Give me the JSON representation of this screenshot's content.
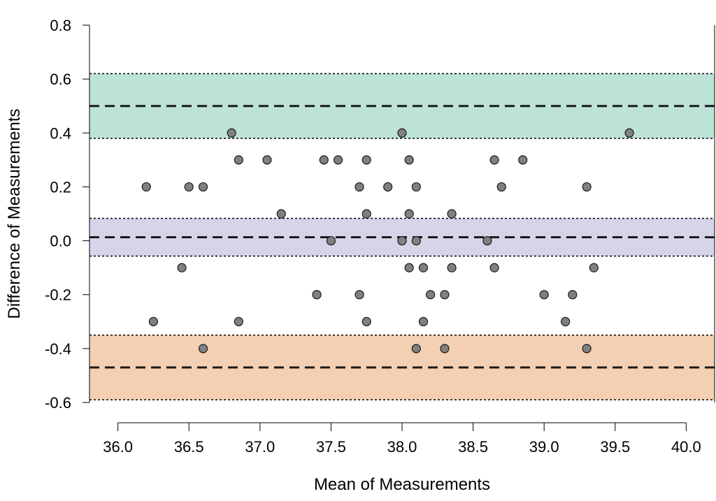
{
  "chart_data": {
    "type": "scatter",
    "title": "",
    "xlabel": "Mean of Measurements",
    "ylabel": "Difference of Measurements",
    "xlim": [
      35.8,
      40.2
    ],
    "ylim": [
      -0.6,
      0.8
    ],
    "xticks": [
      36.0,
      36.5,
      37.0,
      37.5,
      38.0,
      38.5,
      39.0,
      39.5,
      40.0
    ],
    "xtick_labels": [
      "36.0",
      "36.5",
      "37.0",
      "37.5",
      "38.0",
      "38.5",
      "39.0",
      "39.5",
      "40.0"
    ],
    "yticks": [
      -0.6,
      -0.4,
      -0.2,
      0.0,
      0.2,
      0.4,
      0.6,
      0.8
    ],
    "ytick_labels": [
      "-0.6",
      "-0.4",
      "-0.2",
      "0.0",
      "0.2",
      "0.4",
      "0.6",
      "0.8"
    ],
    "grid": false,
    "bands": [
      {
        "center": 0.5,
        "lower": 0.38,
        "upper": 0.62,
        "color": "#bce3d6"
      },
      {
        "center": 0.013,
        "lower": -0.057,
        "upper": 0.083,
        "color": "#d6d4e8"
      },
      {
        "center": -0.47,
        "lower": -0.59,
        "upper": -0.35,
        "color": "#f4cfb2"
      }
    ],
    "marker_color": "#808080",
    "points": [
      {
        "x": 36.2,
        "y": 0.2
      },
      {
        "x": 36.25,
        "y": -0.3
      },
      {
        "x": 36.45,
        "y": -0.1
      },
      {
        "x": 36.5,
        "y": 0.2
      },
      {
        "x": 36.6,
        "y": 0.2
      },
      {
        "x": 36.6,
        "y": -0.4
      },
      {
        "x": 36.8,
        "y": 0.4
      },
      {
        "x": 36.85,
        "y": 0.3
      },
      {
        "x": 36.85,
        "y": -0.3
      },
      {
        "x": 37.05,
        "y": 0.3
      },
      {
        "x": 37.15,
        "y": 0.1
      },
      {
        "x": 37.4,
        "y": -0.2
      },
      {
        "x": 37.45,
        "y": 0.3
      },
      {
        "x": 37.5,
        "y": 0.0
      },
      {
        "x": 37.55,
        "y": 0.3
      },
      {
        "x": 37.7,
        "y": 0.2
      },
      {
        "x": 37.7,
        "y": -0.2
      },
      {
        "x": 37.75,
        "y": 0.3
      },
      {
        "x": 37.75,
        "y": 0.1
      },
      {
        "x": 37.75,
        "y": -0.3
      },
      {
        "x": 37.9,
        "y": 0.2
      },
      {
        "x": 38.0,
        "y": 0.4
      },
      {
        "x": 38.0,
        "y": 0.0
      },
      {
        "x": 38.05,
        "y": 0.3
      },
      {
        "x": 38.05,
        "y": 0.1
      },
      {
        "x": 38.05,
        "y": -0.1
      },
      {
        "x": 38.1,
        "y": 0.2
      },
      {
        "x": 38.1,
        "y": 0.0
      },
      {
        "x": 38.1,
        "y": -0.4
      },
      {
        "x": 38.15,
        "y": -0.1
      },
      {
        "x": 38.15,
        "y": -0.3
      },
      {
        "x": 38.2,
        "y": -0.2
      },
      {
        "x": 38.3,
        "y": -0.2
      },
      {
        "x": 38.3,
        "y": -0.4
      },
      {
        "x": 38.35,
        "y": 0.1
      },
      {
        "x": 38.35,
        "y": -0.1
      },
      {
        "x": 38.6,
        "y": 0.0
      },
      {
        "x": 38.65,
        "y": 0.3
      },
      {
        "x": 38.65,
        "y": -0.1
      },
      {
        "x": 38.7,
        "y": 0.2
      },
      {
        "x": 38.85,
        "y": 0.3
      },
      {
        "x": 39.0,
        "y": -0.2
      },
      {
        "x": 39.15,
        "y": -0.3
      },
      {
        "x": 39.2,
        "y": -0.2
      },
      {
        "x": 39.3,
        "y": 0.2
      },
      {
        "x": 39.3,
        "y": -0.4
      },
      {
        "x": 39.35,
        "y": -0.1
      },
      {
        "x": 39.6,
        "y": 0.4
      }
    ]
  }
}
